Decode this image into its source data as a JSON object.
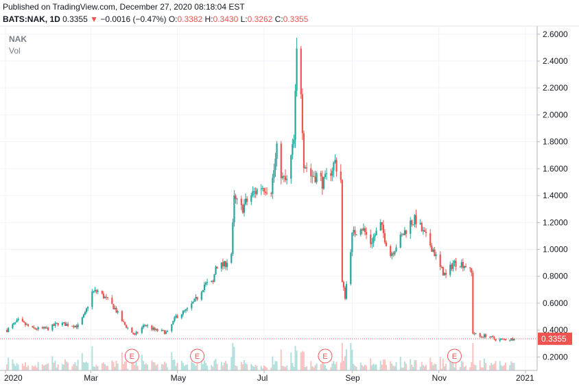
{
  "header": {
    "published": "Published on TradingView.com, December 27, 2020 08:18:04 EST",
    "symbol": "BATS:NAK, 1D",
    "last": "0.3355",
    "arrow": "▼",
    "change": "−0.0016 (−0.47%)",
    "o_label": "O:",
    "o_value": "0.3382",
    "h_label": "H:",
    "h_value": "0.3430",
    "l_label": "L:",
    "l_value": "0.3262",
    "c_label": "C:",
    "c_value": "0.3355"
  },
  "legend": {
    "ticker": "NAK",
    "volume_label": "Vol"
  },
  "price_tag": "0.3355",
  "colors": {
    "up": "#26a69a",
    "down": "#ef5350",
    "grid": "#f0f3fa",
    "axis_text": "#131722",
    "last_line": "#ef5350",
    "earnings": "#ef5350"
  },
  "chart_data": {
    "type": "candlestick",
    "y_axis": {
      "range": [
        0.1,
        2.66
      ],
      "ticks": [
        "0.2000",
        "0.4000",
        "0.6000",
        "0.8000",
        "1.0000",
        "1.2000",
        "1.4000",
        "1.6000",
        "1.8000",
        "2.0000",
        "2.2000",
        "2.4000",
        "2.6000"
      ]
    },
    "x_axis": {
      "ticks": [
        "2020",
        "Mar",
        "May",
        "Jul",
        "Sep",
        "Nov",
        "2021"
      ],
      "tick_dates": [
        "2020-01-01",
        "2020-03-01",
        "2020-05-01",
        "2020-07-01",
        "2020-09-01",
        "2020-11-01",
        "2021-01-01"
      ]
    },
    "earnings_label": "E",
    "earnings_dates": [
      "2020-03-30",
      "2020-05-15",
      "2020-08-13",
      "2020-11-12"
    ],
    "last_price": 0.3355,
    "anchors": [
      [
        "2020-01-02",
        0.4
      ],
      [
        "2020-01-10",
        0.47
      ],
      [
        "2020-01-20",
        0.41
      ],
      [
        "2020-01-31",
        0.41
      ],
      [
        "2020-02-07",
        0.45
      ],
      [
        "2020-02-14",
        0.44
      ],
      [
        "2020-02-21",
        0.43
      ],
      [
        "2020-02-26",
        0.52
      ],
      [
        "2020-03-02",
        0.68
      ],
      [
        "2020-03-06",
        0.69
      ],
      [
        "2020-03-13",
        0.62
      ],
      [
        "2020-03-18",
        0.56
      ],
      [
        "2020-03-24",
        0.45
      ],
      [
        "2020-04-01",
        0.36
      ],
      [
        "2020-04-08",
        0.44
      ],
      [
        "2020-04-15",
        0.4
      ],
      [
        "2020-04-20",
        0.39
      ],
      [
        "2020-04-24",
        0.38
      ],
      [
        "2020-04-30",
        0.5
      ],
      [
        "2020-05-08",
        0.55
      ],
      [
        "2020-05-15",
        0.64
      ],
      [
        "2020-05-20",
        0.74
      ],
      [
        "2020-05-26",
        0.75
      ],
      [
        "2020-05-28",
        0.88
      ],
      [
        "2020-06-03",
        0.88
      ],
      [
        "2020-06-08",
        0.97
      ],
      [
        "2020-06-10",
        1.37
      ],
      [
        "2020-06-15",
        1.3
      ],
      [
        "2020-06-22",
        1.4
      ],
      [
        "2020-06-29",
        1.47
      ],
      [
        "2020-07-06",
        1.45
      ],
      [
        "2020-07-10",
        1.73
      ],
      [
        "2020-07-14",
        1.52
      ],
      [
        "2020-07-17",
        1.5
      ],
      [
        "2020-07-22",
        1.8
      ],
      [
        "2020-07-24",
        2.45
      ],
      [
        "2020-07-27",
        2.2
      ],
      [
        "2020-07-29",
        1.65
      ],
      [
        "2020-08-03",
        1.55
      ],
      [
        "2020-08-07",
        1.55
      ],
      [
        "2020-08-12",
        1.49
      ],
      [
        "2020-08-20",
        1.65
      ],
      [
        "2020-08-24",
        1.52
      ],
      [
        "2020-08-25",
        0.75
      ],
      [
        "2020-08-27",
        0.65
      ],
      [
        "2020-09-01",
        1.1
      ],
      [
        "2020-09-07",
        1.18
      ],
      [
        "2020-09-14",
        1.05
      ],
      [
        "2020-09-21",
        1.18
      ],
      [
        "2020-09-28",
        0.96
      ],
      [
        "2020-10-05",
        1.08
      ],
      [
        "2020-10-12",
        1.2
      ],
      [
        "2020-10-16",
        1.22
      ],
      [
        "2020-10-21",
        1.12
      ],
      [
        "2020-10-28",
        1.0
      ],
      [
        "2020-11-02",
        0.86
      ],
      [
        "2020-11-06",
        0.8
      ],
      [
        "2020-11-11",
        0.9
      ],
      [
        "2020-11-16",
        0.9
      ],
      [
        "2020-11-20",
        0.88
      ],
      [
        "2020-11-24",
        0.82
      ],
      [
        "2020-11-25",
        0.38
      ],
      [
        "2020-11-30",
        0.35
      ],
      [
        "2020-12-04",
        0.36
      ],
      [
        "2020-12-11",
        0.33
      ],
      [
        "2020-12-18",
        0.33
      ],
      [
        "2020-12-24",
        0.3355
      ]
    ]
  }
}
